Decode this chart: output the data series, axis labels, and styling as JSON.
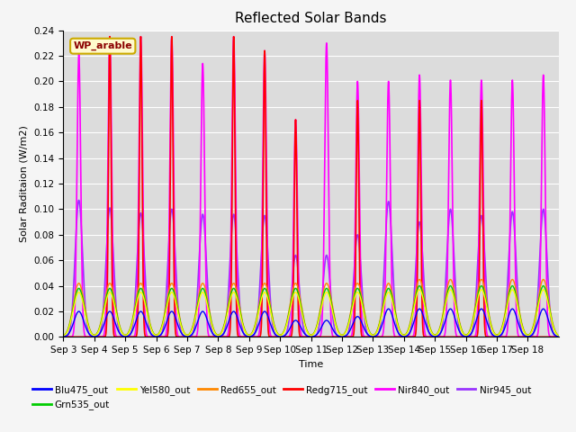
{
  "title": "Reflected Solar Bands",
  "xlabel": "Time",
  "ylabel": "Solar Raditaion (W/m2)",
  "annotation": "WP_arable",
  "ylim": [
    0,
    0.24
  ],
  "yticks": [
    0.0,
    0.02,
    0.04,
    0.06,
    0.08,
    0.1,
    0.12,
    0.14,
    0.16,
    0.18,
    0.2,
    0.22,
    0.24
  ],
  "xtick_labels": [
    "Sep 3",
    "Sep 4",
    "Sep 5",
    "Sep 6",
    "Sep 7",
    "Sep 8",
    "Sep 9",
    "Sep 10",
    "Sep 11",
    "Sep 12",
    "Sep 13",
    "Sep 14",
    "Sep 15",
    "Sep 16",
    "Sep 17",
    "Sep 18"
  ],
  "series": {
    "Blu475_out": {
      "color": "#0000ff",
      "lw": 1.0
    },
    "Grn535_out": {
      "color": "#00cc00",
      "lw": 1.0
    },
    "Yel580_out": {
      "color": "#ffff00",
      "lw": 1.0
    },
    "Red655_out": {
      "color": "#ff8800",
      "lw": 1.0
    },
    "Redg715_out": {
      "color": "#ff0000",
      "lw": 1.2
    },
    "Nir840_out": {
      "color": "#ff00ff",
      "lw": 1.2
    },
    "Nir945_out": {
      "color": "#9933ff",
      "lw": 1.2
    }
  },
  "plot_bg": "#dcdcdc",
  "fig_bg": "#f5f5f5",
  "grid_color": "#ffffff",
  "n_days": 16,
  "pts_per_day": 288,
  "day_peaks": {
    "Nir840_peak": [
      0.221,
      0.235,
      0.235,
      0.235,
      0.214,
      0.235,
      0.224,
      0.17,
      0.23,
      0.2,
      0.2,
      0.205,
      0.201,
      0.201,
      0.201,
      0.205
    ],
    "Redg715_peak": [
      0.0,
      0.235,
      0.235,
      0.235,
      0.0,
      0.235,
      0.224,
      0.17,
      0.0,
      0.185,
      0.0,
      0.185,
      0.0,
      0.185,
      0.0,
      0.0
    ],
    "Nir945_peak": [
      0.107,
      0.101,
      0.097,
      0.1,
      0.096,
      0.096,
      0.095,
      0.064,
      0.064,
      0.08,
      0.106,
      0.09,
      0.1,
      0.095,
      0.098,
      0.1
    ],
    "Red655_peak": [
      0.042,
      0.042,
      0.042,
      0.042,
      0.042,
      0.042,
      0.042,
      0.042,
      0.042,
      0.042,
      0.042,
      0.045,
      0.045,
      0.045,
      0.045,
      0.045
    ],
    "Grn535_peak": [
      0.038,
      0.038,
      0.038,
      0.038,
      0.038,
      0.038,
      0.038,
      0.038,
      0.038,
      0.038,
      0.038,
      0.04,
      0.04,
      0.04,
      0.04,
      0.04
    ],
    "Yel580_peak": [
      0.035,
      0.035,
      0.035,
      0.035,
      0.035,
      0.035,
      0.035,
      0.035,
      0.035,
      0.035,
      0.035,
      0.037,
      0.037,
      0.037,
      0.037,
      0.037
    ],
    "Blu475_peak": [
      0.02,
      0.02,
      0.02,
      0.02,
      0.02,
      0.02,
      0.02,
      0.013,
      0.013,
      0.016,
      0.022,
      0.022,
      0.022,
      0.022,
      0.022,
      0.022
    ]
  },
  "sigma_narrow": 0.06,
  "sigma_medium": 0.12,
  "sigma_wide": 0.18
}
